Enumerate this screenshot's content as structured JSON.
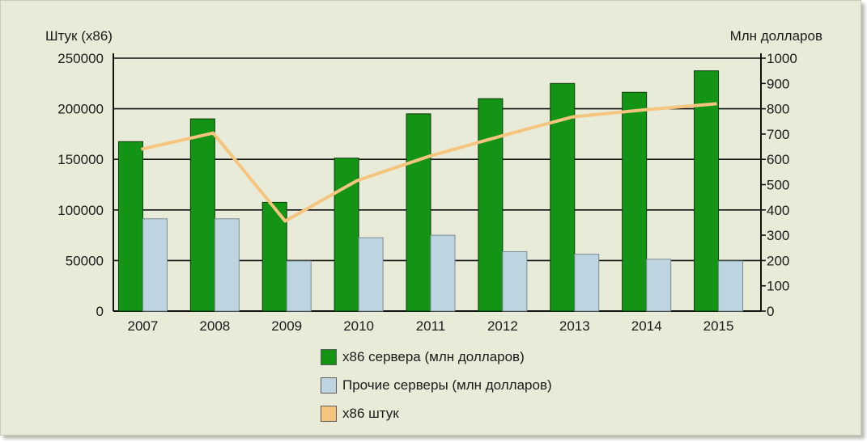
{
  "chart_data": {
    "type": "bar",
    "categories": [
      "2007",
      "2008",
      "2009",
      "2010",
      "2011",
      "2012",
      "2013",
      "2014",
      "2015"
    ],
    "left_axis": {
      "label": "Штук (x86)",
      "ylim": [
        0,
        250000
      ],
      "ticks": [
        "250000",
        "200000",
        "150000",
        "100000",
        "50000",
        "0"
      ]
    },
    "right_axis": {
      "label": "Млн долларов",
      "ylim": [
        0,
        1000
      ],
      "ticks": [
        "1000",
        "900",
        "800",
        "700",
        "600",
        "500",
        "400",
        "300",
        "200",
        "100",
        "0"
      ]
    },
    "series": [
      {
        "name": "x86 сервера (млн долларов)",
        "kind": "bar",
        "axis": "right",
        "color": "#149414",
        "values": [
          670,
          760,
          430,
          605,
          780,
          840,
          900,
          865,
          950
        ]
      },
      {
        "name": "Прочие серверы (млн долларов)",
        "kind": "bar",
        "axis": "right",
        "color": "#bfd4e1",
        "values": [
          365,
          365,
          198,
          290,
          300,
          235,
          225,
          205,
          198
        ]
      },
      {
        "name": "x86 штук",
        "kind": "line",
        "axis": "left",
        "color": "#f5c57f",
        "values": [
          160000,
          176000,
          89000,
          129000,
          153000,
          173000,
          192000,
          199000,
          205000
        ]
      }
    ],
    "grid": true,
    "legend_position": "bottom-center"
  }
}
